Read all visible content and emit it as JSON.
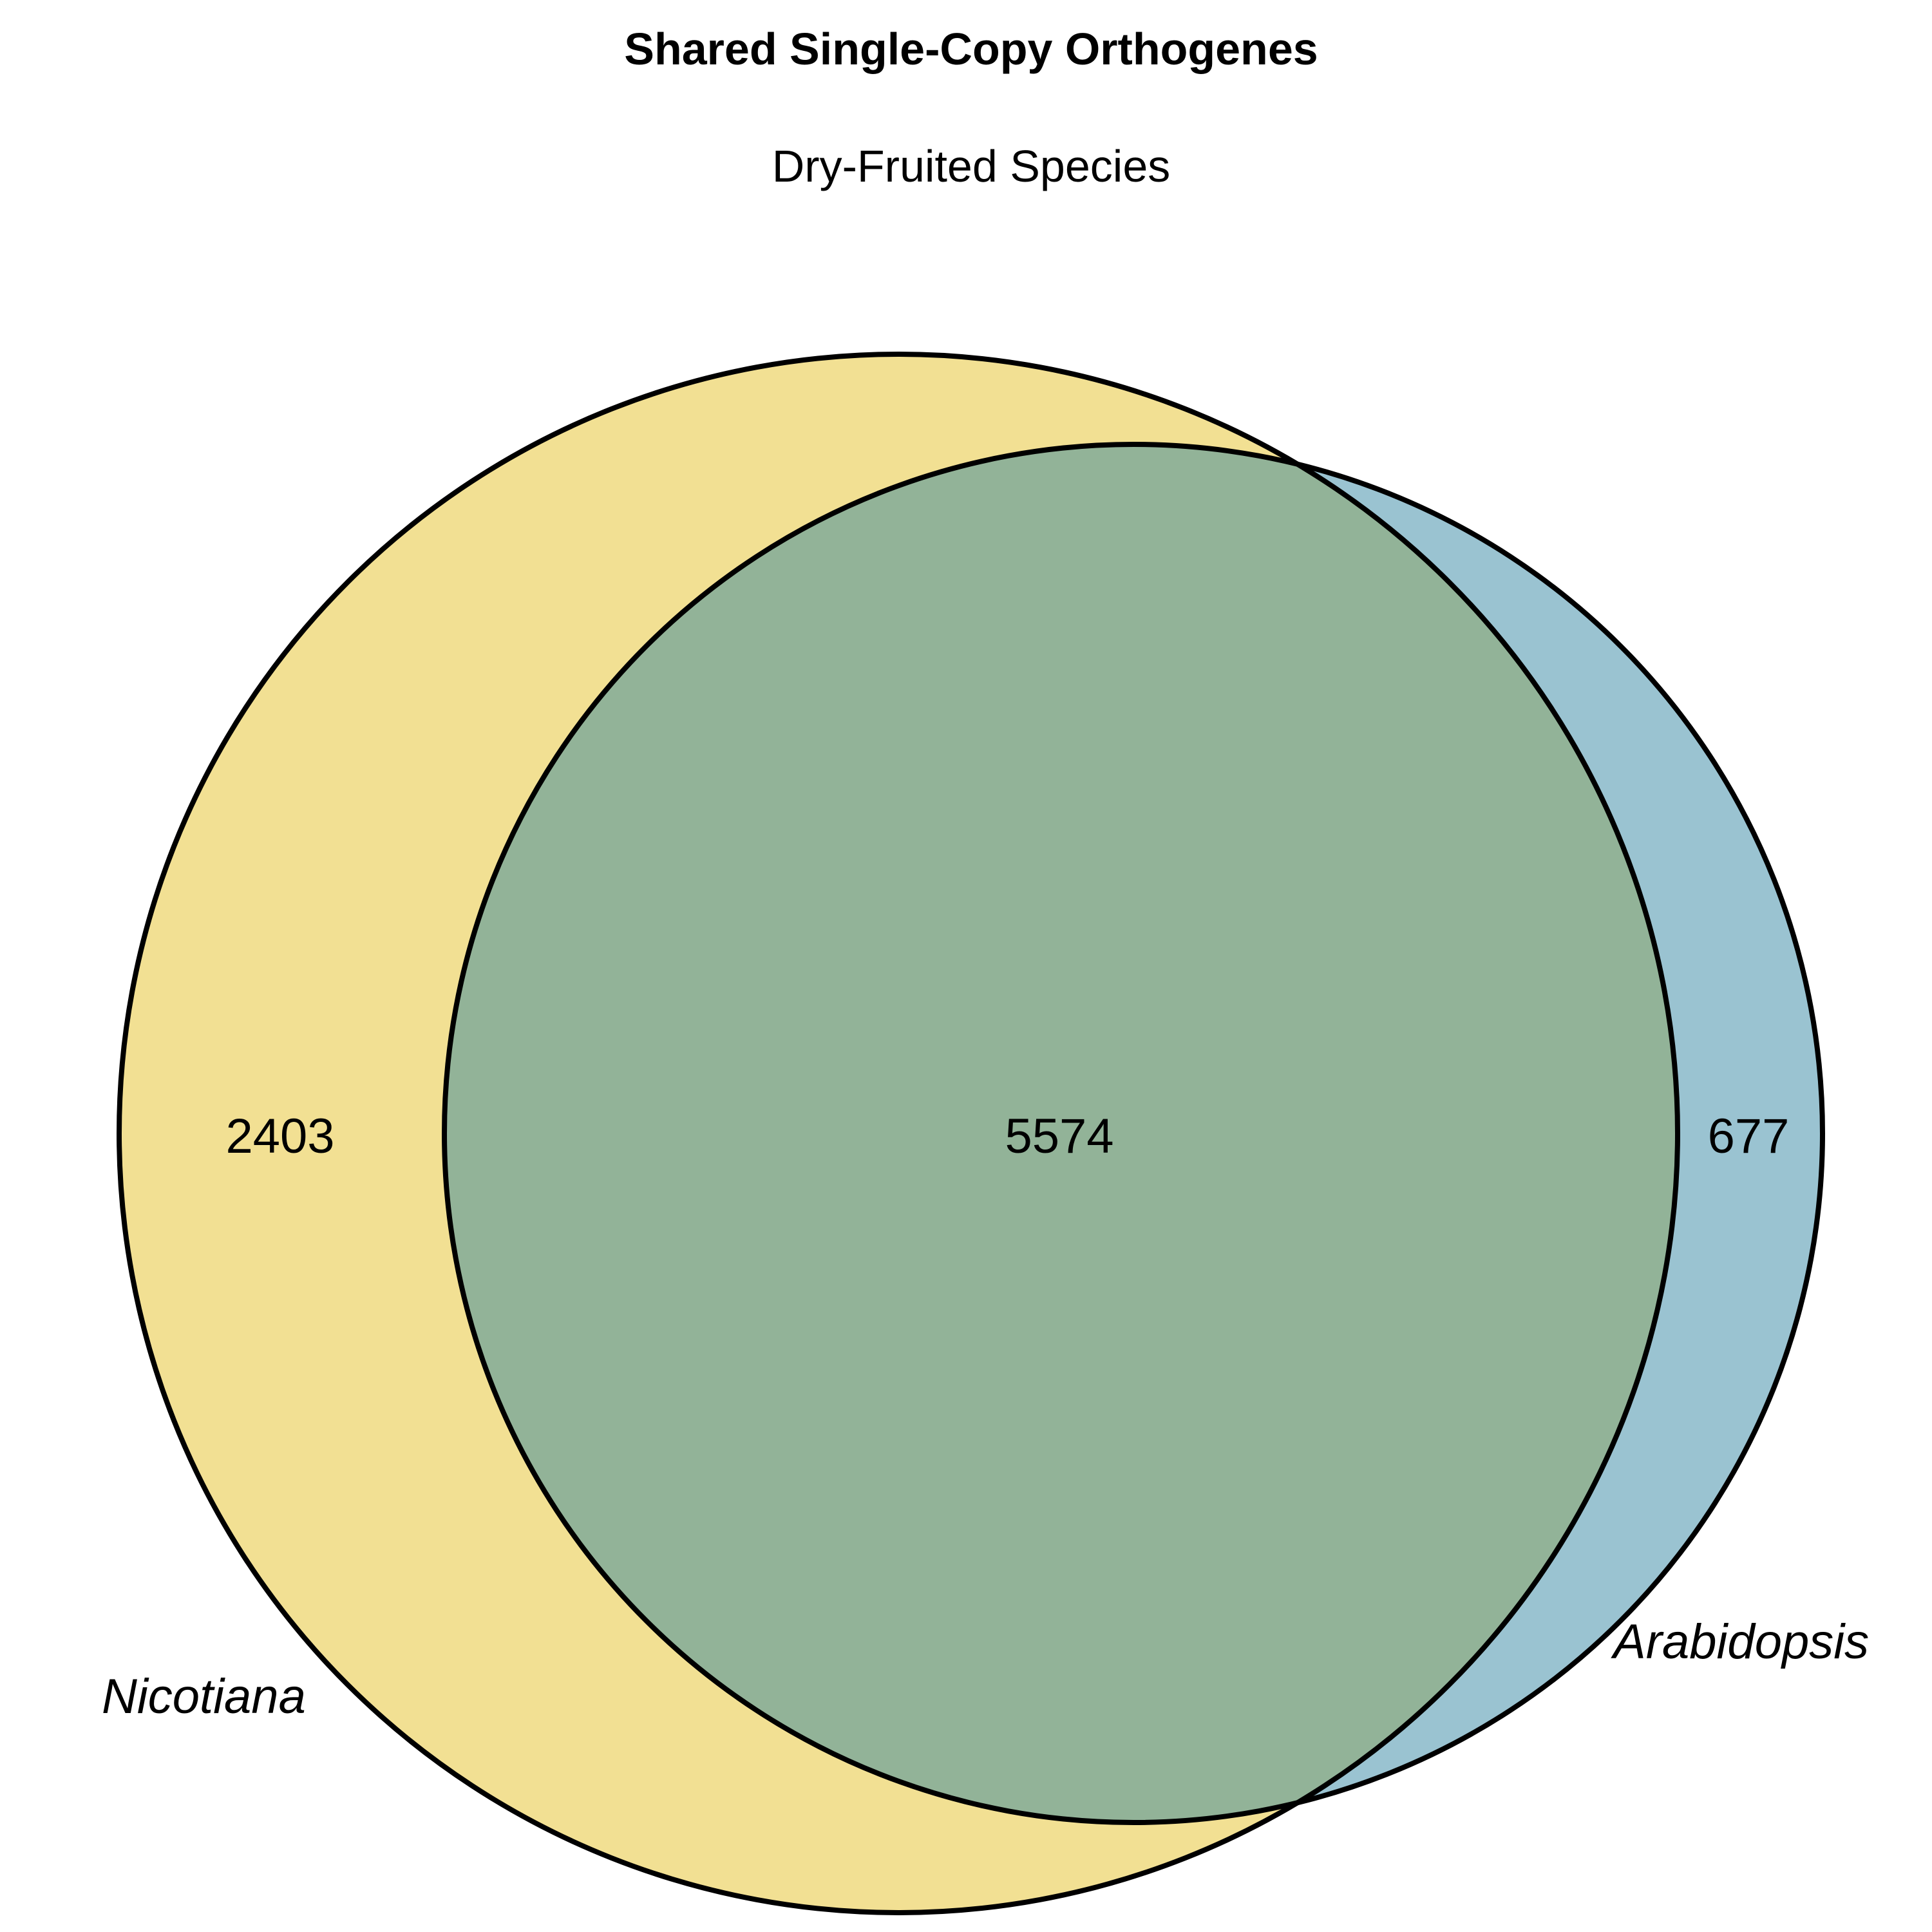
{
  "title": "Shared Single-Copy Orthogenes",
  "subtitle": "Dry-Fruited Species",
  "sets": [
    {
      "name": "Nicotiana",
      "color": "#f2e093"
    },
    {
      "name": "Arabidopsis",
      "color": "#9ac3d1"
    }
  ],
  "overlap_color": "#92b398",
  "counts": {
    "nicotiana_only": "2403",
    "shared": "5574",
    "arabidopsis_only": "677"
  }
}
